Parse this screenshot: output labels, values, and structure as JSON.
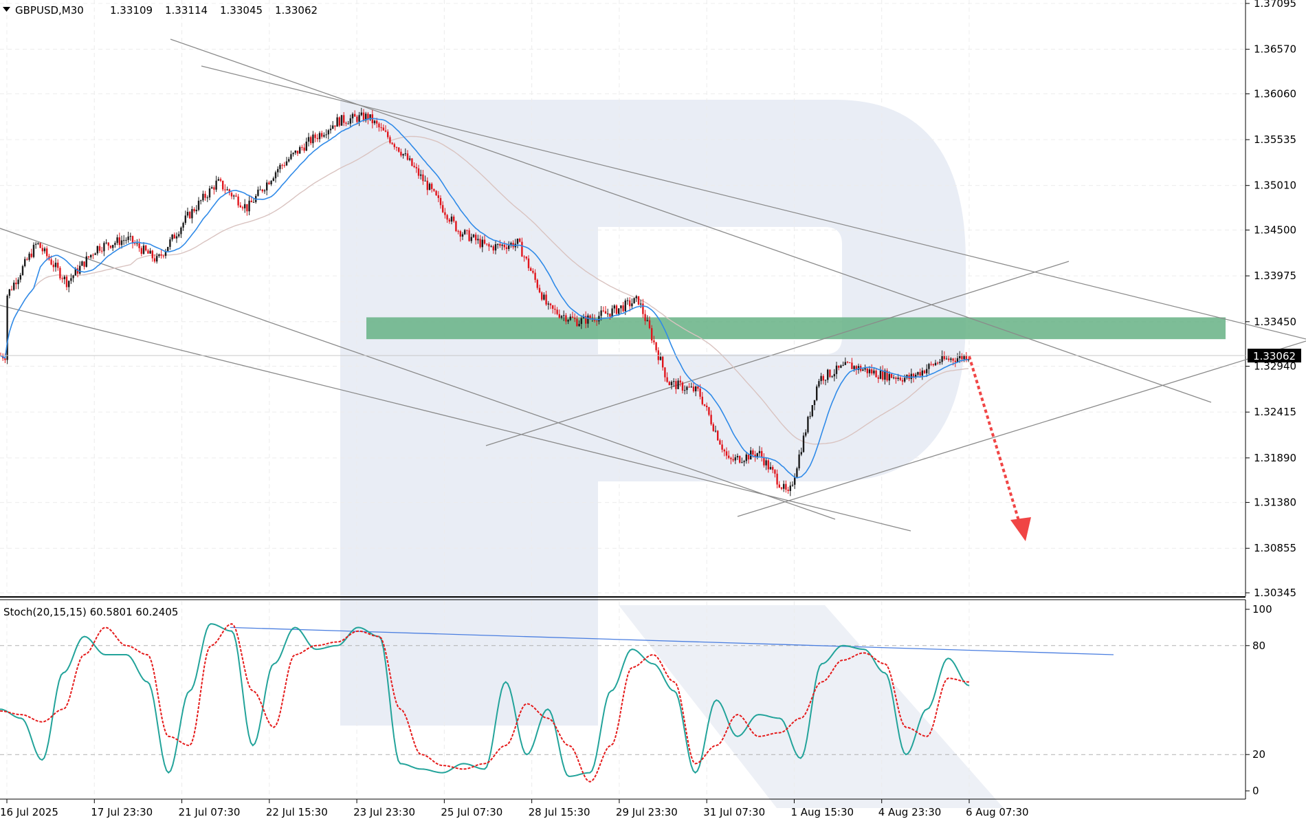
{
  "header": {
    "symbol": "GBPUSD,M30",
    "open": "1.33109",
    "high": "1.33114",
    "low": "1.33045",
    "close": "1.33062"
  },
  "price_axis": {
    "ticks": [
      "1.37095",
      "1.36570",
      "1.36060",
      "1.35535",
      "1.35010",
      "1.34500",
      "1.33975",
      "1.33450",
      "1.32940",
      "1.32415",
      "1.31890",
      "1.31380",
      "1.30855",
      "1.30345"
    ],
    "current_price_label": "1.33062"
  },
  "time_axis": {
    "ticks": [
      "16 Jul 2025",
      "17 Jul 23:30",
      "21 Jul 07:30",
      "22 Jul 15:30",
      "23 Jul 23:30",
      "25 Jul 07:30",
      "28 Jul 15:30",
      "29 Jul 23:30",
      "31 Jul 07:30",
      "1 Aug 15:30",
      "4 Aug 23:30",
      "6 Aug 07:30"
    ]
  },
  "oscillator": {
    "label": "Stoch(20,15,15) 60.5801 60.2405",
    "ticks": [
      "100",
      "80",
      "20",
      "0"
    ]
  },
  "colors": {
    "candle_up": "#1a1a1a",
    "candle_down": "#e0141b",
    "ma_fast": "#2f8ae8",
    "ma_slow": "#d9c3c0",
    "trendline": "#8a8a8a",
    "resistance_zone": "#66b285",
    "forecast_arrow": "#f04545",
    "stoch_main": "#22a39a",
    "stoch_signal": "#e51b1b",
    "stoch_trendline": "#4a7ee0",
    "watermark": "#e6ebf3"
  },
  "chart_data": [
    {
      "type": "candlestick",
      "title": "GBPUSD,M30",
      "ylim": [
        1.302,
        1.3725
      ],
      "anchors": [
        [
          "16 Jul 2025",
          1.3375
        ],
        [
          "",
          1.3435
        ],
        [
          "",
          1.339
        ],
        [
          "17 Jul 23:30",
          1.343
        ],
        [
          "",
          1.344
        ],
        [
          "",
          1.3415
        ],
        [
          "21 Jul 07:30",
          1.3465
        ],
        [
          "",
          1.3505
        ],
        [
          "",
          1.3475
        ],
        [
          "22 Jul 15:30",
          1.352
        ],
        [
          "",
          1.355
        ],
        [
          "",
          1.3575
        ],
        [
          "23 Jul 23:30",
          1.358
        ],
        [
          "",
          1.3545
        ],
        [
          "",
          1.35
        ],
        [
          "25 Jul 07:30",
          1.345
        ],
        [
          "",
          1.343
        ],
        [
          "",
          1.3435
        ],
        [
          "28 Jul 15:30",
          1.336
        ],
        [
          "",
          1.3345
        ],
        [
          "",
          1.3355
        ],
        [
          "29 Jul 23:30",
          1.337
        ],
        [
          "",
          1.3275
        ],
        [
          "",
          1.3265
        ],
        [
          "31 Jul 07:30",
          1.3185
        ],
        [
          "",
          1.3195
        ],
        [
          "",
          1.3145
        ],
        [
          "1 Aug 15:30",
          1.328
        ],
        [
          "",
          1.3295
        ],
        [
          "",
          1.3285
        ],
        [
          "4 Aug 23:30",
          1.328
        ],
        [
          "",
          1.33
        ],
        [
          "6 Aug 07:30",
          1.33062
        ]
      ],
      "resistance_zone": [
        1.3325,
        1.335
      ],
      "forecast": {
        "from": 1.33062,
        "to": 1.3105,
        "direction": "down"
      }
    },
    {
      "type": "line",
      "title": "Stoch(20,15,15)",
      "ylim": [
        0,
        100
      ],
      "levels": [
        80,
        20
      ],
      "series": [
        {
          "name": "Stoch main",
          "values": [
            45,
            40,
            17,
            65,
            85,
            75,
            75,
            60,
            10,
            55,
            92,
            88,
            25,
            70,
            90,
            78,
            80,
            90,
            85,
            15,
            12,
            10,
            15,
            12,
            60,
            20,
            45,
            8,
            10,
            55,
            78,
            70,
            55,
            10,
            50,
            30,
            42,
            40,
            18,
            70,
            80,
            78,
            65,
            20,
            45,
            73,
            58
          ]
        },
        {
          "name": "Stoch signal",
          "values": [
            44,
            42,
            38,
            45,
            75,
            90,
            80,
            75,
            30,
            25,
            80,
            92,
            55,
            35,
            75,
            80,
            82,
            88,
            85,
            45,
            20,
            14,
            12,
            15,
            25,
            48,
            40,
            25,
            5,
            25,
            68,
            75,
            60,
            15,
            25,
            42,
            30,
            32,
            40,
            60,
            72,
            76,
            70,
            35,
            30,
            62,
            60
          ]
        }
      ],
      "trendline_start": 90,
      "trendline_end": 75
    }
  ]
}
